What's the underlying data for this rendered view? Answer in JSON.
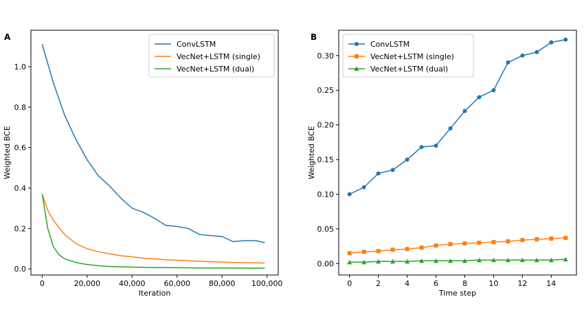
{
  "chart_data": [
    {
      "type": "line",
      "panel_label": "A",
      "xlabel": "Iteration",
      "ylabel": "Weighted BCE",
      "xlim": [
        -5000,
        105000
      ],
      "ylim": [
        -0.03,
        1.18
      ],
      "xticks": [
        0,
        20000,
        40000,
        60000,
        80000,
        100000
      ],
      "xtick_labels": [
        "0",
        "20,000",
        "40,000",
        "60,000",
        "80,000",
        "100,000"
      ],
      "yticks": [
        0.0,
        0.2,
        0.4,
        0.6,
        0.8,
        1.0
      ],
      "ytick_labels": [
        "0.0",
        "0.2",
        "0.4",
        "0.6",
        "0.8",
        "1.0"
      ],
      "grid": false,
      "legend_position": "top-right",
      "series": [
        {
          "name": "ConvLSTM",
          "color": "#1f77b4",
          "marker": "none",
          "x": [
            0,
            5000,
            10000,
            15000,
            20000,
            25000,
            30000,
            35000,
            40000,
            45000,
            50000,
            55000,
            60000,
            65000,
            70000,
            75000,
            80000,
            85000,
            90000,
            95000,
            99000
          ],
          "y": [
            1.11,
            0.92,
            0.76,
            0.64,
            0.54,
            0.46,
            0.41,
            0.35,
            0.3,
            0.28,
            0.25,
            0.215,
            0.21,
            0.2,
            0.17,
            0.165,
            0.16,
            0.135,
            0.14,
            0.14,
            0.13
          ]
        },
        {
          "name": "VecNet+LSTM (single)",
          "color": "#ff7f0e",
          "marker": "none",
          "x": [
            0,
            2500,
            5000,
            10000,
            15000,
            20000,
            25000,
            30000,
            35000,
            40000,
            45000,
            50000,
            55000,
            60000,
            65000,
            70000,
            75000,
            80000,
            85000,
            90000,
            95000,
            99000
          ],
          "y": [
            0.37,
            0.29,
            0.24,
            0.17,
            0.125,
            0.1,
            0.085,
            0.075,
            0.065,
            0.06,
            0.053,
            0.05,
            0.045,
            0.043,
            0.04,
            0.038,
            0.036,
            0.034,
            0.032,
            0.031,
            0.03,
            0.029
          ]
        },
        {
          "name": "VecNet+LSTM (dual)",
          "color": "#2ca02c",
          "marker": "none",
          "x": [
            0,
            2500,
            5000,
            7500,
            10000,
            15000,
            20000,
            25000,
            30000,
            40000,
            50000,
            60000,
            70000,
            80000,
            90000,
            99000
          ],
          "y": [
            0.37,
            0.2,
            0.11,
            0.07,
            0.05,
            0.032,
            0.022,
            0.016,
            0.012,
            0.009,
            0.007,
            0.006,
            0.005,
            0.005,
            0.004,
            0.004
          ]
        }
      ]
    },
    {
      "type": "line",
      "panel_label": "B",
      "xlabel": "Time step",
      "ylabel": "Weighted BCE",
      "xlim": [
        -0.75,
        15.75
      ],
      "ylim": [
        -0.0165,
        0.3365
      ],
      "xticks": [
        0,
        2,
        4,
        6,
        8,
        10,
        12,
        14
      ],
      "xtick_labels": [
        "0",
        "2",
        "4",
        "6",
        "8",
        "10",
        "12",
        "14"
      ],
      "yticks": [
        0.0,
        0.05,
        0.1,
        0.15,
        0.2,
        0.25,
        0.3
      ],
      "ytick_labels": [
        "0.00",
        "0.05",
        "0.10",
        "0.15",
        "0.20",
        "0.25",
        "0.30"
      ],
      "grid": false,
      "legend_position": "top-left",
      "series": [
        {
          "name": "ConvLSTM",
          "color": "#1f77b4",
          "marker": "circle",
          "x": [
            0,
            1,
            2,
            3,
            4,
            5,
            6,
            7,
            8,
            9,
            10,
            11,
            12,
            13,
            14,
            15
          ],
          "y": [
            0.1,
            0.11,
            0.13,
            0.135,
            0.15,
            0.168,
            0.17,
            0.195,
            0.22,
            0.24,
            0.25,
            0.29,
            0.3,
            0.305,
            0.319,
            0.323
          ]
        },
        {
          "name": "VecNet+LSTM (single)",
          "color": "#ff7f0e",
          "marker": "square",
          "x": [
            0,
            1,
            2,
            3,
            4,
            5,
            6,
            7,
            8,
            9,
            10,
            11,
            12,
            13,
            14,
            15
          ],
          "y": [
            0.015,
            0.017,
            0.018,
            0.02,
            0.021,
            0.023,
            0.026,
            0.028,
            0.029,
            0.03,
            0.031,
            0.032,
            0.034,
            0.035,
            0.036,
            0.037
          ]
        },
        {
          "name": "VecNet+LSTM (dual)",
          "color": "#2ca02c",
          "marker": "triangle",
          "x": [
            0,
            1,
            2,
            3,
            4,
            5,
            6,
            7,
            8,
            9,
            10,
            11,
            12,
            13,
            14,
            15
          ],
          "y": [
            0.002,
            0.002,
            0.003,
            0.003,
            0.003,
            0.004,
            0.004,
            0.004,
            0.004,
            0.005,
            0.005,
            0.005,
            0.005,
            0.005,
            0.005,
            0.006
          ]
        }
      ]
    }
  ]
}
